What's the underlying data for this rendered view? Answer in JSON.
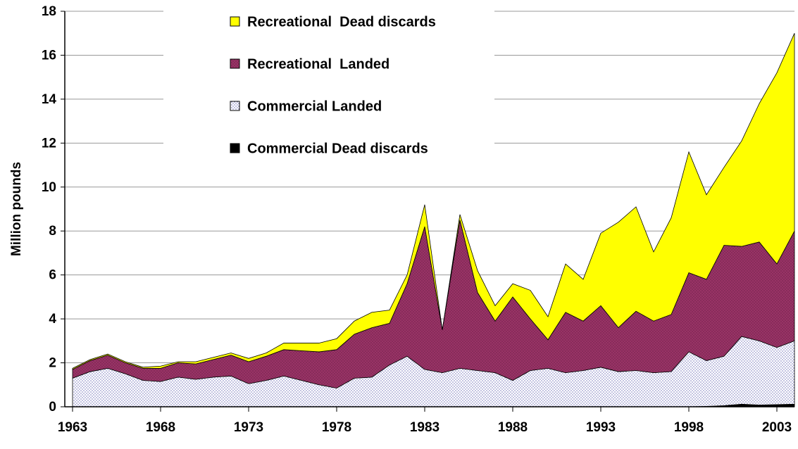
{
  "chart_data": {
    "type": "stacked-area",
    "y_label": "Million pounds",
    "x": [
      1963,
      1964,
      1965,
      1966,
      1967,
      1968,
      1969,
      1970,
      1971,
      1972,
      1973,
      1974,
      1975,
      1976,
      1977,
      1978,
      1979,
      1980,
      1981,
      1982,
      1983,
      1984,
      1985,
      1986,
      1987,
      1988,
      1989,
      1990,
      1991,
      1992,
      1993,
      1994,
      1995,
      1996,
      1997,
      1998,
      1999,
      2000,
      2001,
      2002,
      2003,
      2004
    ],
    "xlim": [
      1963,
      2004
    ],
    "xticks": [
      1963,
      1968,
      1973,
      1978,
      1983,
      1988,
      1993,
      1998,
      2003
    ],
    "ylim": [
      0,
      18
    ],
    "yticks": [
      0,
      2,
      4,
      6,
      8,
      10,
      12,
      14,
      16,
      18
    ],
    "grid": true,
    "series": [
      {
        "name": "Commercial Dead discards",
        "color": "#000000",
        "values": [
          0,
          0,
          0,
          0,
          0,
          0,
          0,
          0,
          0,
          0,
          0,
          0,
          0,
          0,
          0,
          0,
          0,
          0,
          0,
          0,
          0,
          0,
          0,
          0,
          0,
          0,
          0,
          0,
          0,
          0,
          0,
          0,
          0,
          0,
          0,
          0,
          0.02,
          0.05,
          0.12,
          0.08,
          0.1,
          0.12
        ]
      },
      {
        "name": "Commercial Landed",
        "color": "#333399",
        "values": [
          1.3,
          1.6,
          1.75,
          1.5,
          1.2,
          1.15,
          1.35,
          1.25,
          1.35,
          1.4,
          1.05,
          1.2,
          1.4,
          1.2,
          1.0,
          0.85,
          1.3,
          1.35,
          1.9,
          2.3,
          1.7,
          1.55,
          1.75,
          1.65,
          1.55,
          1.2,
          1.65,
          1.75,
          1.55,
          1.65,
          1.8,
          1.6,
          1.65,
          1.55,
          1.6,
          2.5,
          2.08,
          2.25,
          3.08,
          2.92,
          2.6,
          2.88
        ]
      },
      {
        "name": "Recreational  Landed",
        "color": "#993366",
        "values": [
          0.4,
          0.5,
          0.6,
          0.5,
          0.55,
          0.6,
          0.65,
          0.7,
          0.8,
          0.95,
          1.0,
          1.1,
          1.2,
          1.35,
          1.5,
          1.75,
          2.0,
          2.25,
          1.9,
          3.3,
          6.5,
          1.95,
          6.75,
          3.55,
          2.35,
          3.8,
          2.35,
          1.3,
          2.75,
          2.25,
          2.8,
          2.0,
          2.7,
          2.35,
          2.6,
          3.6,
          3.7,
          5.05,
          4.1,
          4.5,
          3.8,
          5.0
        ]
      },
      {
        "name": "Recreational  Dead discards",
        "color": "#ffff00",
        "values": [
          0.05,
          0.05,
          0.05,
          0.05,
          0.05,
          0.1,
          0.05,
          0.1,
          0.1,
          0.1,
          0.15,
          0.15,
          0.3,
          0.35,
          0.4,
          0.5,
          0.6,
          0.7,
          0.6,
          0.4,
          1.0,
          0,
          0.25,
          1.0,
          0.7,
          0.6,
          1.3,
          1.05,
          2.2,
          1.9,
          3.3,
          4.8,
          4.75,
          3.15,
          4.4,
          5.5,
          3.85,
          3.55,
          4.8,
          6.3,
          8.7,
          9.0
        ]
      }
    ]
  }
}
